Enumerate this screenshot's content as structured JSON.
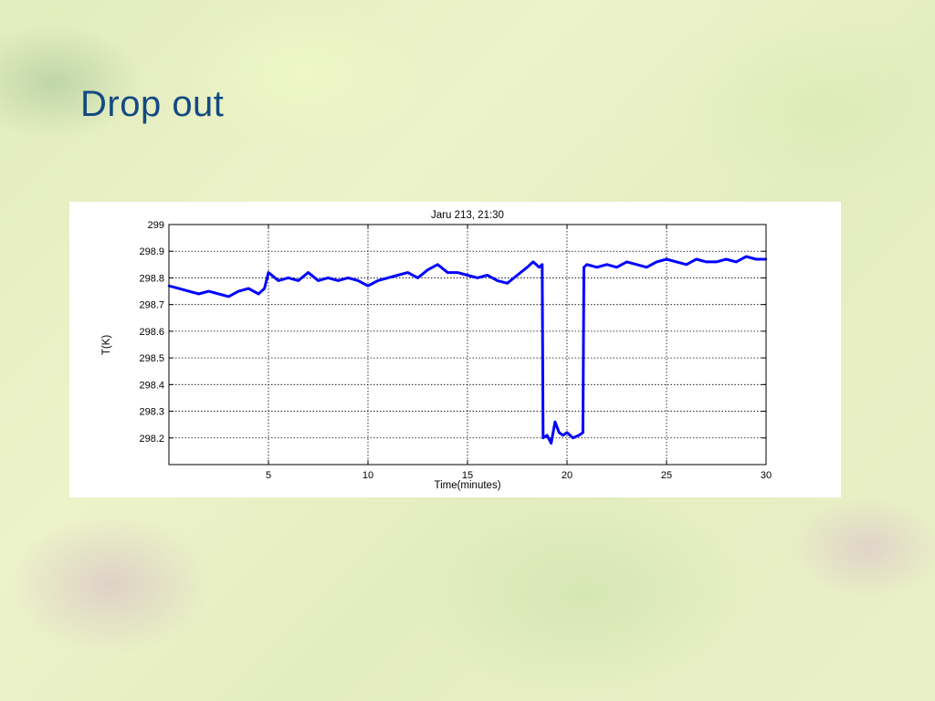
{
  "slide": {
    "title": "Drop out"
  },
  "chart_data": {
    "type": "line",
    "title": "Jaru 213, 21:30",
    "xlabel": "Time(minutes)",
    "ylabel": "T(K)",
    "xlim": [
      0,
      30
    ],
    "ylim": [
      298.1,
      299
    ],
    "xticks": [
      5,
      10,
      15,
      20,
      25,
      30
    ],
    "xtick_labels": [
      "5",
      "10",
      "15",
      "20",
      "25",
      "30"
    ],
    "yticks": [
      298.2,
      298.3,
      298.4,
      298.5,
      298.6,
      298.7,
      298.8,
      298.9,
      299
    ],
    "ytick_labels": [
      "298.2",
      "298.3",
      "298.4",
      "298.5",
      "298.6",
      "298.7",
      "298.8",
      "298.9",
      "299"
    ],
    "grid": true,
    "line_color": "#0000ff",
    "series": [
      {
        "x": [
          0,
          0.5,
          1,
          1.5,
          2,
          2.5,
          3,
          3.5,
          4,
          4.5,
          4.8,
          5,
          5.5,
          6,
          6.5,
          7,
          7.5,
          8,
          8.5,
          9,
          9.5,
          10,
          10.5,
          11,
          11.5,
          12,
          12.5,
          13,
          13.5,
          14,
          14.5,
          15,
          15.5,
          16,
          16.5,
          17,
          17.5,
          18,
          18.3,
          18.6,
          18.75,
          18.8,
          19,
          19.2,
          19.4,
          19.6,
          19.8,
          20,
          20.3,
          20.6,
          20.8,
          20.85,
          21,
          21.5,
          22,
          22.5,
          23,
          23.5,
          24,
          24.5,
          25,
          25.5,
          26,
          26.5,
          27,
          27.5,
          28,
          28.5,
          29,
          29.5,
          30
        ],
        "y": [
          298.77,
          298.76,
          298.75,
          298.74,
          298.75,
          298.74,
          298.73,
          298.75,
          298.76,
          298.74,
          298.76,
          298.82,
          298.79,
          298.8,
          298.79,
          298.82,
          298.79,
          298.8,
          298.79,
          298.8,
          298.79,
          298.77,
          298.79,
          298.8,
          298.81,
          298.82,
          298.8,
          298.83,
          298.85,
          298.82,
          298.82,
          298.81,
          298.8,
          298.81,
          298.79,
          298.78,
          298.81,
          298.84,
          298.86,
          298.84,
          298.85,
          298.2,
          298.21,
          298.18,
          298.26,
          298.22,
          298.21,
          298.22,
          298.2,
          298.21,
          298.22,
          298.84,
          298.85,
          298.84,
          298.85,
          298.84,
          298.86,
          298.85,
          298.84,
          298.86,
          298.87,
          298.86,
          298.85,
          298.87,
          298.86,
          298.86,
          298.87,
          298.86,
          298.88,
          298.87,
          298.87
        ]
      }
    ]
  }
}
